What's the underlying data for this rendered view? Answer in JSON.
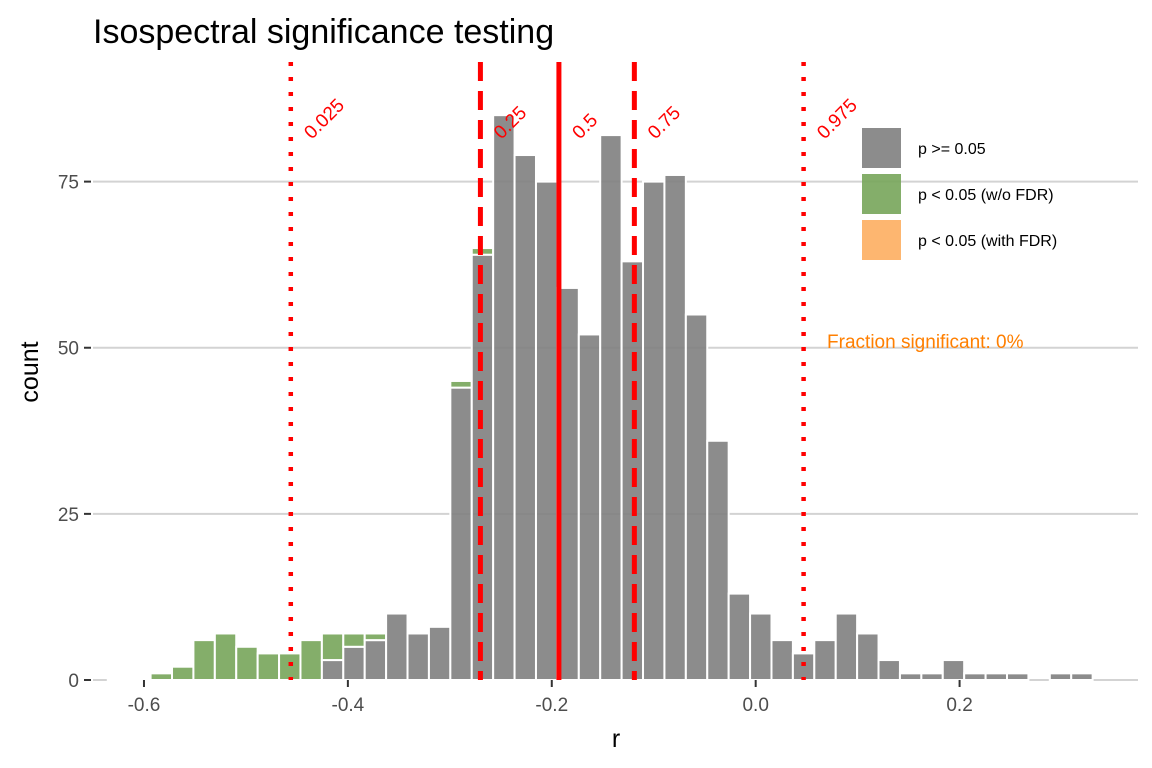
{
  "chart_data": {
    "type": "bar",
    "title": "Isospectral significance testing",
    "xlabel": "r",
    "ylabel": "count",
    "xlim": [
      -0.65,
      0.375
    ],
    "ylim": [
      0,
      93
    ],
    "bin_width": 0.021,
    "x_ticks": [
      {
        "value": -0.6,
        "label": "-0.6"
      },
      {
        "value": -0.4,
        "label": "-0.4"
      },
      {
        "value": -0.2,
        "label": "-0.2"
      },
      {
        "value": 0.0,
        "label": "0.0"
      },
      {
        "value": 0.2,
        "label": "0.2"
      }
    ],
    "y_ticks": [
      {
        "value": 0,
        "label": "0"
      },
      {
        "value": 25,
        "label": "25"
      },
      {
        "value": 50,
        "label": "50"
      },
      {
        "value": 75,
        "label": "75"
      }
    ],
    "grid": "horizontal major only",
    "bins_x": [
      -0.625,
      -0.604,
      -0.583,
      -0.562,
      -0.541,
      -0.52,
      -0.499,
      -0.478,
      -0.457,
      -0.436,
      -0.415,
      -0.394,
      -0.373,
      -0.352,
      -0.331,
      -0.31,
      -0.289,
      -0.268,
      -0.247,
      -0.226,
      -0.205,
      -0.184,
      -0.163,
      -0.142,
      -0.121,
      -0.1,
      -0.079,
      -0.058,
      -0.037,
      -0.016,
      0.005,
      0.026,
      0.047,
      0.068,
      0.089,
      0.11,
      0.131,
      0.152,
      0.173,
      0.194,
      0.215,
      0.236,
      0.257,
      0.278,
      0.299,
      0.32,
      0.341
    ],
    "series": [
      {
        "name": "p >= 0.05",
        "color": "#7f7f7f",
        "values": [
          0,
          0,
          0,
          0,
          0,
          0,
          0,
          0,
          0,
          0,
          3,
          5,
          6,
          10,
          7,
          8,
          44,
          64,
          85,
          79,
          75,
          59,
          52,
          82,
          63,
          75,
          76,
          55,
          36,
          13,
          10,
          6,
          4,
          6,
          10,
          7,
          3,
          1,
          1,
          3,
          1,
          1,
          1,
          0,
          1,
          1,
          0
        ]
      },
      {
        "name": "p < 0.05 (w/o FDR)",
        "color": "#77a55a",
        "values": [
          0.2,
          0.2,
          1,
          2,
          6,
          7,
          5,
          4,
          4,
          6,
          4,
          2,
          1,
          0,
          0,
          0,
          1,
          1,
          0,
          0,
          0,
          0,
          0,
          0,
          0,
          0,
          0,
          0,
          0,
          0,
          0,
          0,
          0,
          0,
          0,
          0,
          0,
          0,
          0,
          0,
          0,
          0,
          0,
          0,
          0,
          0,
          0
        ]
      },
      {
        "name": "p < 0.05 (with FDR)",
        "color": "#fdae61",
        "values": [
          0,
          0,
          0,
          0,
          0,
          0,
          0,
          0,
          0,
          0,
          0,
          0,
          0,
          0,
          0,
          0,
          0,
          0,
          0,
          0,
          0,
          0,
          0,
          0,
          0,
          0,
          0,
          0,
          0,
          0,
          0,
          0,
          0,
          0,
          0,
          0,
          0,
          0,
          0,
          0,
          0,
          0,
          0,
          0,
          0,
          0,
          0
        ]
      }
    ],
    "quantile_lines": [
      {
        "label": "0.025",
        "x": -0.456,
        "style": "dotted",
        "color": "#ff0000"
      },
      {
        "label": "0.25",
        "x": -0.27,
        "style": "dashed",
        "color": "#ff0000"
      },
      {
        "label": "0.5",
        "x": -0.193,
        "style": "solid",
        "color": "#ff0000"
      },
      {
        "label": "0.75",
        "x": -0.119,
        "style": "dashed",
        "color": "#ff0000"
      },
      {
        "label": "0.975",
        "x": 0.047,
        "style": "dotted",
        "color": "#ff0000"
      }
    ],
    "annotation": {
      "text": "Fraction significant: 0%",
      "color": "#ff7f00",
      "x": 0.07,
      "y": 51
    },
    "legend": {
      "position": "top-right, inside",
      "entries": [
        {
          "label": "p >= 0.05",
          "color": "#7f7f7f"
        },
        {
          "label": "p < 0.05 (w/o FDR)",
          "color": "#77a55a"
        },
        {
          "label": "p < 0.05 (with FDR)",
          "color": "#fdae61"
        }
      ]
    }
  }
}
